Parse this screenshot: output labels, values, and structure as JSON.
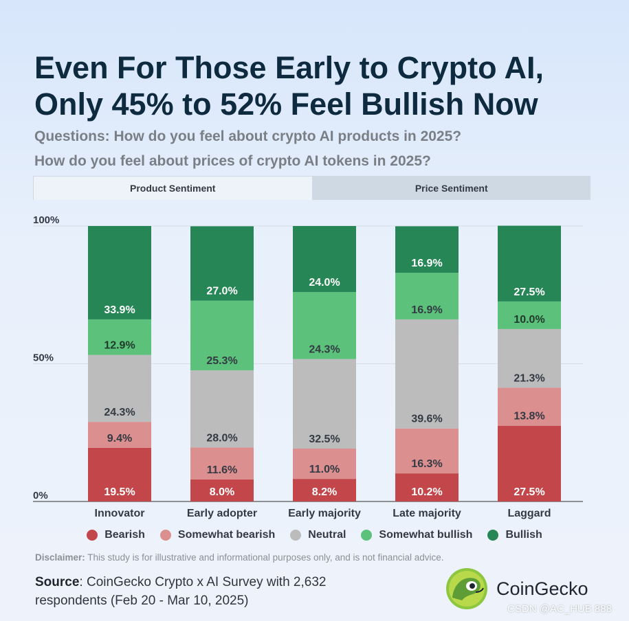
{
  "title": [
    "Even For Those Early to Crypto AI,",
    "Only 45% to 52% Feel Bullish Now"
  ],
  "subtitle": [
    "Questions: How do you feel about crypto AI products in 2025?",
    "How do you feel about prices of crypto AI tokens in 2025?"
  ],
  "tabs": [
    {
      "label": "Product Sentiment",
      "active": true
    },
    {
      "label": "Price Sentiment",
      "active": false
    }
  ],
  "chart_data": {
    "type": "bar",
    "stacked": true,
    "categories": [
      "Innovator",
      "Early adopter",
      "Early majority",
      "Late majority",
      "Laggard"
    ],
    "series": [
      {
        "name": "Bearish",
        "color": "#c3474a",
        "values": [
          19.5,
          8.0,
          8.2,
          10.2,
          27.5
        ]
      },
      {
        "name": "Somewhat bearish",
        "color": "#dc8f8f",
        "values": [
          9.4,
          11.6,
          11.0,
          16.3,
          13.8
        ]
      },
      {
        "name": "Neutral",
        "color": "#bcbcbc",
        "values": [
          24.3,
          28.0,
          32.5,
          39.6,
          21.3
        ]
      },
      {
        "name": "Somewhat bullish",
        "color": "#5cc17a",
        "values": [
          12.9,
          25.3,
          24.3,
          16.9,
          10.0
        ]
      },
      {
        "name": "Bullish",
        "color": "#268656",
        "values": [
          33.9,
          27.0,
          24.0,
          16.9,
          27.5
        ]
      }
    ],
    "ylim": [
      0,
      100
    ],
    "yticks": [
      "0%",
      "50%",
      "100%"
    ],
    "legend_position": "bottom",
    "grid": true
  },
  "disclaimer_bold": "Disclaimer:",
  "disclaimer_text": " This study is for illustrative and informational purposes only, and is not financial advice.",
  "source_bold": "Source",
  "source_text": [
    ": CoinGecko Crypto x AI Survey with 2,632",
    "respondents (Feb 20 - Mar 10, 2025)"
  ],
  "logo_name": "CoinGecko",
  "watermark": "CSDN @AC_HUB 888"
}
